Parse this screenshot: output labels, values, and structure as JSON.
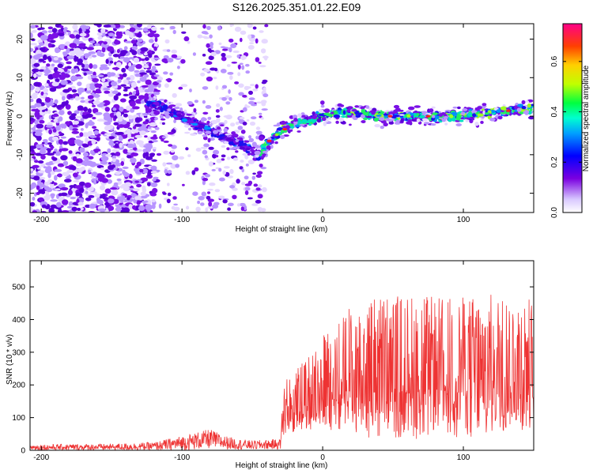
{
  "title": "S126.2025.351.01.22.E09",
  "chart_data": [
    {
      "type": "heatmap",
      "xlabel": "Height of straight line (km)",
      "ylabel": "Frequency (Hz)",
      "xlim": [
        -208,
        150
      ],
      "ylim": [
        -25,
        24
      ],
      "xticks": [
        -200,
        -100,
        0,
        100
      ],
      "yticks": [
        -20,
        -10,
        0,
        10,
        20
      ],
      "colorbar": {
        "label": "Normalized spectral amplitude",
        "range": [
          0,
          0.75
        ],
        "ticks": [
          "0.0",
          "0.2",
          "0.4",
          "0.6"
        ],
        "tick_values": [
          0.0,
          0.2,
          0.4,
          0.6
        ]
      },
      "ridge_frequency_profile": {
        "x": [
          -120,
          -100,
          -80,
          -60,
          -45,
          -40,
          -30,
          -20,
          -10,
          0,
          10,
          20,
          40,
          60,
          80,
          100,
          120,
          150
        ],
        "y": [
          3,
          0,
          -4,
          -7,
          -10,
          -7,
          -4,
          -2,
          -1,
          0,
          1,
          1,
          0,
          0,
          0,
          0,
          1,
          2
        ]
      }
    },
    {
      "type": "line",
      "xlabel": "Height of straight line (km)",
      "ylabel": "SNR (10 * v/v)",
      "xlim": [
        -208,
        150
      ],
      "ylim": [
        0,
        580
      ],
      "xticks": [
        -200,
        -100,
        0,
        100
      ],
      "yticks": [
        0,
        100,
        200,
        300,
        400,
        500
      ],
      "series_color": "#ee3333",
      "envelope": {
        "x": [
          -208,
          -150,
          -120,
          -100,
          -90,
          -80,
          -70,
          -60,
          -50,
          -30,
          -28,
          -10,
          0,
          20,
          40,
          60,
          80,
          100,
          120,
          150
        ],
        "low": [
          0,
          0,
          0,
          0,
          2,
          5,
          3,
          2,
          2,
          3,
          40,
          60,
          70,
          40,
          30,
          30,
          40,
          30,
          40,
          60
        ],
        "high": [
          18,
          20,
          25,
          45,
          55,
          65,
          45,
          35,
          30,
          35,
          210,
          290,
          360,
          440,
          480,
          480,
          470,
          470,
          480,
          470
        ]
      }
    }
  ]
}
